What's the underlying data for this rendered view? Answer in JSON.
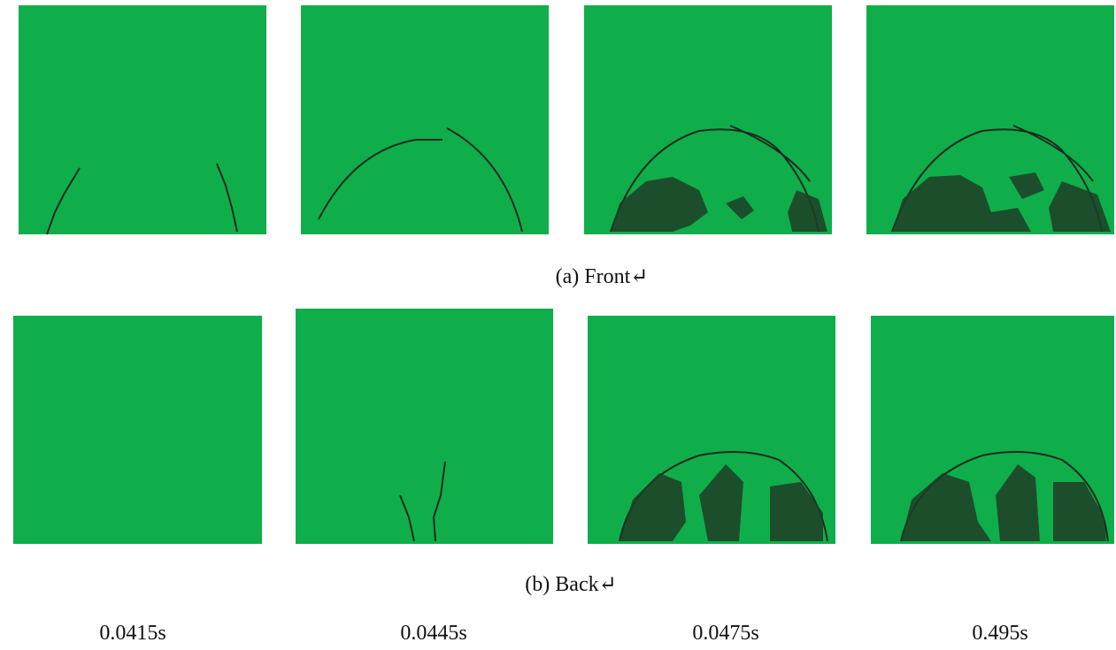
{
  "front_caption": "(a) Front↵",
  "back_caption": "(b) Back↵",
  "times": [
    "0.0415s",
    "0.0445s",
    "0.0475s",
    "0.495s"
  ]
}
